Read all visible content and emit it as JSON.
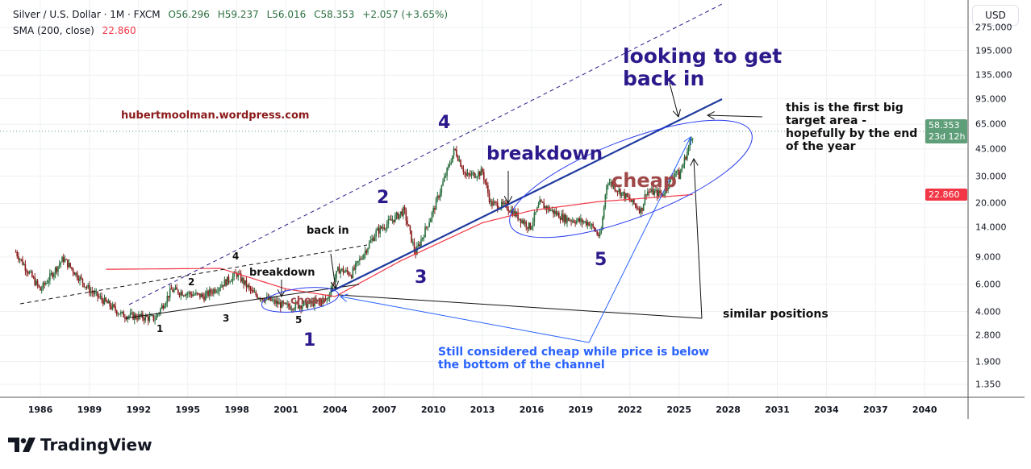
{
  "header": {
    "symbol": "Silver / U.S. Dollar · 1M · FXCM",
    "open": "O56.296",
    "high": "H59.237",
    "low": "L56.016",
    "close": "C58.353",
    "change": "+2.057 (+3.65%)",
    "indicator": "SMA (200, close)",
    "indicator_value": "22.860"
  },
  "currency_button": "USD",
  "price_axis": [
    "275.000",
    "195.000",
    "135.000",
    "95.000",
    "65.000",
    "45.000",
    "30.000",
    "20.000",
    "14.000",
    "9.000",
    "6.000",
    "4.000",
    "2.800",
    "1.900",
    "1.350"
  ],
  "time_axis": [
    "1986",
    "1989",
    "1992",
    "1995",
    "1998",
    "2001",
    "2004",
    "2007",
    "2010",
    "2013",
    "2016",
    "2019",
    "2022",
    "2025",
    "2028",
    "2031",
    "2034",
    "2037",
    "2040"
  ],
  "last_price_tag": {
    "price": "58.353",
    "countdown": "23d 12h",
    "color": "#5e9e78"
  },
  "sma_tag": {
    "value": "22.860",
    "color": "#f23645"
  },
  "annotations": {
    "watermark": "hubertmoolman.wordpress.com",
    "looking": "looking to get back in",
    "target": "this is the first big target area - hopefully by the end of the year",
    "breakdown_big": "breakdown",
    "cheap_big": "cheap",
    "w4": "4",
    "w2": "2",
    "w3": "3",
    "w5": "5",
    "w1": "1",
    "back_in": "back in",
    "breakdown_small": "breakdown",
    "cheap_small": "cheap",
    "s1": "1",
    "s2": "2",
    "s3": "3",
    "s4": "4",
    "s5": "5",
    "similar": "similar positions",
    "still_cheap": "Still considered cheap while price is below the bottom of the channel"
  },
  "colors": {
    "up": "#2a6f3f",
    "down": "#8b1a1a",
    "sma": "#f23645",
    "channel": "#1e3a9e",
    "annotation_purple": "#2c1a8c",
    "annotation_blue": "#2962ff"
  },
  "branding": "TradingView",
  "chart_data": {
    "type": "candlestick",
    "scale": "log",
    "timeframe": "1M",
    "ylim": [
      1.2,
      330
    ],
    "xlim": [
      1984,
      2043
    ],
    "price_path": [
      [
        1984.5,
        9.7
      ],
      [
        1986,
        5.5
      ],
      [
        1987.4,
        8.8
      ],
      [
        1989,
        5.5
      ],
      [
        1991,
        3.8
      ],
      [
        1993,
        3.6
      ],
      [
        1994,
        5.5
      ],
      [
        1996,
        5.0
      ],
      [
        1998,
        7.0
      ],
      [
        1999,
        5.2
      ],
      [
        2001,
        4.3
      ],
      [
        2002.5,
        4.5
      ],
      [
        2003.5,
        4.8
      ],
      [
        2004.2,
        7.5
      ],
      [
        2005,
        7.0
      ],
      [
        2006.5,
        13
      ],
      [
        2008.2,
        18
      ],
      [
        2008.9,
        9.5
      ],
      [
        2010,
        18
      ],
      [
        2011.3,
        45
      ],
      [
        2012,
        30
      ],
      [
        2013,
        32
      ],
      [
        2013.5,
        20
      ],
      [
        2014.5,
        19
      ],
      [
        2015.9,
        14
      ],
      [
        2016.5,
        20
      ],
      [
        2018,
        16
      ],
      [
        2019.5,
        15
      ],
      [
        2020.2,
        12
      ],
      [
        2020.6,
        28
      ],
      [
        2021,
        26
      ],
      [
        2022.7,
        18
      ],
      [
        2023,
        24
      ],
      [
        2024,
        23
      ],
      [
        2024.8,
        33
      ],
      [
        2025,
        30
      ],
      [
        2025.9,
        58.353
      ]
    ],
    "sma_path": [
      [
        1990,
        7.5
      ],
      [
        1997,
        7.6
      ],
      [
        2001,
        5.6
      ],
      [
        2004,
        5.0
      ],
      [
        2008,
        8.5
      ],
      [
        2013,
        15
      ],
      [
        2016,
        18
      ],
      [
        2020,
        20.5
      ],
      [
        2025.9,
        22.86
      ]
    ]
  }
}
